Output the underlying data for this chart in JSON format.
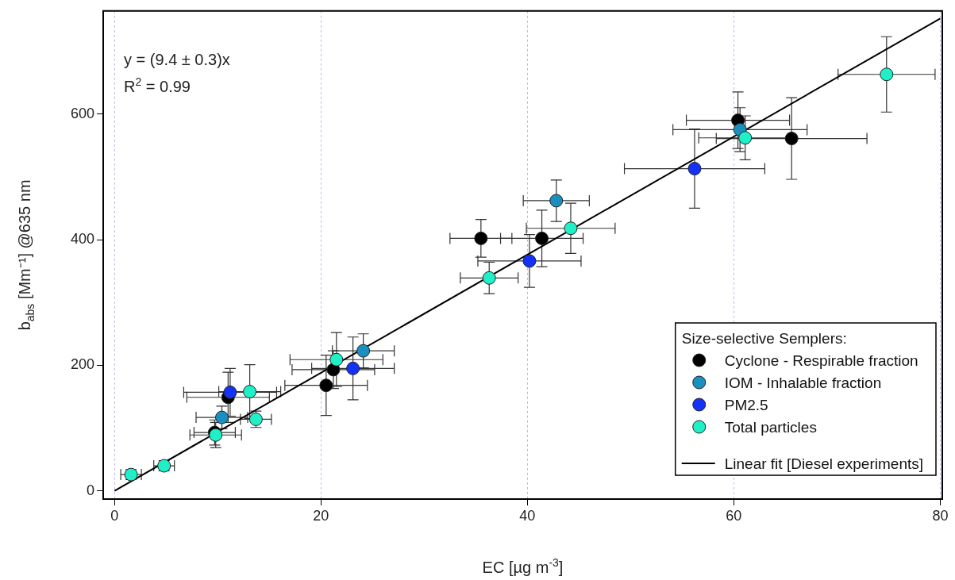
{
  "chart_data": {
    "type": "scatter",
    "xlabel": "EC [µg m$^{-3}$]",
    "ylabel": "b$_{abs}$ [Mm⁻¹] @635 nm",
    "legend_title": "Size-selective Semplers:",
    "annotations": [
      "y = (9.4 ± 0.3)x",
      "R$^{2}$ = 0.99"
    ],
    "xlim": [
      -1.1,
      80.2
    ],
    "xticks": [
      0,
      20,
      40,
      60,
      80
    ],
    "ylim": [
      -13,
      764
    ],
    "yticks": [
      0,
      200,
      400,
      600
    ],
    "grid": "x",
    "legend": "bottom right",
    "marker": "circle",
    "series": [
      {
        "name": "Cyclone - Respirable fraction",
        "color": "#000000",
        "x": [
          9.7,
          11.0,
          21.2,
          20.5,
          35.5,
          41.4,
          60.4,
          65.6
        ],
        "values": [
          93,
          149,
          193,
          168,
          402,
          402,
          590,
          561
        ],
        "errors": [
          20,
          40,
          30,
          48,
          30,
          45,
          45,
          65
        ],
        "xerrors": [
          2,
          4,
          4,
          4,
          3,
          4,
          5,
          7.3
        ]
      },
      {
        "name": "IOM - Inhalable fraction",
        "color": "#1a8fc0",
        "x": [
          10.4,
          24.1,
          42.8,
          60.6
        ],
        "values": [
          117,
          223,
          462,
          575
        ],
        "errors": [
          18,
          27,
          33,
          35
        ],
        "xerrors": [
          2.5,
          3,
          3.2,
          6.5
        ]
      },
      {
        "name": "PM2.5",
        "color": "#1432f5",
        "x": [
          11.2,
          23.1,
          40.2,
          56.2
        ],
        "values": [
          157,
          195,
          366,
          513
        ],
        "errors": [
          38,
          50,
          42,
          63
        ],
        "xerrors": [
          4.5,
          4,
          5,
          6.8
        ]
      },
      {
        "name": "Total particles",
        "color": "#20f0c8",
        "x": [
          1.6,
          4.8,
          9.8,
          13.1,
          13.7,
          21.5,
          36.3,
          44.2,
          61.1,
          74.8
        ],
        "values": [
          26,
          40,
          89,
          158,
          114,
          209,
          339,
          418,
          562,
          663
        ],
        "errors": [
          8,
          8,
          20,
          43,
          13,
          43,
          25,
          40,
          35,
          60
        ],
        "xerrors": [
          1,
          1,
          2.5,
          3,
          1.5,
          4.5,
          2.8,
          4.3,
          4.5,
          4.7
        ]
      },
      {
        "name": "Linear fit [Diesel experiments]",
        "type": "line",
        "color": "#000000",
        "x": [
          0,
          80
        ],
        "values": [
          0,
          752
        ],
        "marker": "none",
        "line_style": "solid"
      }
    ]
  }
}
